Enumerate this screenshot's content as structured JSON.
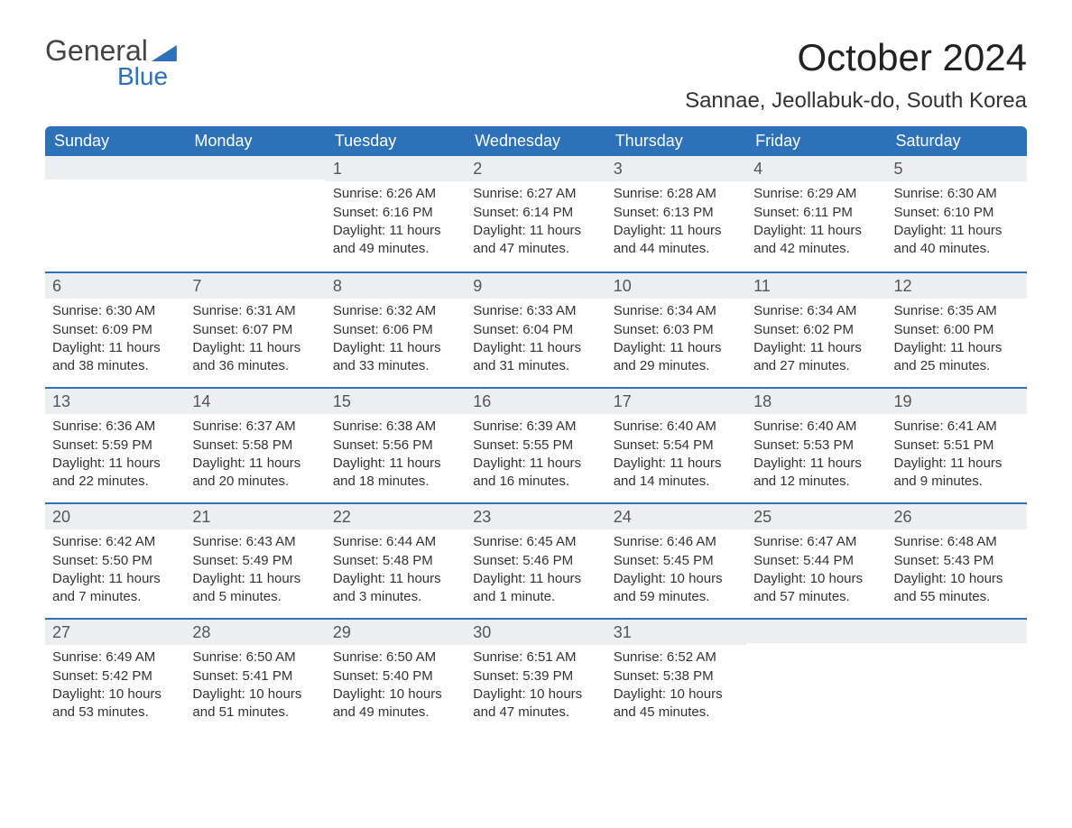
{
  "logo": {
    "top": "General",
    "bottom": "Blue"
  },
  "title": "October 2024",
  "subtitle": "Sannae, Jeollabuk-do, South Korea",
  "colors": {
    "header_bg": "#2d72b8",
    "header_text": "#ffffff",
    "daynum_bg": "#eceef0",
    "border": "#2d72b8",
    "text": "#333333",
    "page_bg": "#ffffff"
  },
  "weekdays": [
    "Sunday",
    "Monday",
    "Tuesday",
    "Wednesday",
    "Thursday",
    "Friday",
    "Saturday"
  ],
  "weeks": [
    [
      {
        "n": "",
        "lines": []
      },
      {
        "n": "",
        "lines": []
      },
      {
        "n": "1",
        "lines": [
          "Sunrise: 6:26 AM",
          "Sunset: 6:16 PM",
          "Daylight: 11 hours and 49 minutes."
        ]
      },
      {
        "n": "2",
        "lines": [
          "Sunrise: 6:27 AM",
          "Sunset: 6:14 PM",
          "Daylight: 11 hours and 47 minutes."
        ]
      },
      {
        "n": "3",
        "lines": [
          "Sunrise: 6:28 AM",
          "Sunset: 6:13 PM",
          "Daylight: 11 hours and 44 minutes."
        ]
      },
      {
        "n": "4",
        "lines": [
          "Sunrise: 6:29 AM",
          "Sunset: 6:11 PM",
          "Daylight: 11 hours and 42 minutes."
        ]
      },
      {
        "n": "5",
        "lines": [
          "Sunrise: 6:30 AM",
          "Sunset: 6:10 PM",
          "Daylight: 11 hours and 40 minutes."
        ]
      }
    ],
    [
      {
        "n": "6",
        "lines": [
          "Sunrise: 6:30 AM",
          "Sunset: 6:09 PM",
          "Daylight: 11 hours and 38 minutes."
        ]
      },
      {
        "n": "7",
        "lines": [
          "Sunrise: 6:31 AM",
          "Sunset: 6:07 PM",
          "Daylight: 11 hours and 36 minutes."
        ]
      },
      {
        "n": "8",
        "lines": [
          "Sunrise: 6:32 AM",
          "Sunset: 6:06 PM",
          "Daylight: 11 hours and 33 minutes."
        ]
      },
      {
        "n": "9",
        "lines": [
          "Sunrise: 6:33 AM",
          "Sunset: 6:04 PM",
          "Daylight: 11 hours and 31 minutes."
        ]
      },
      {
        "n": "10",
        "lines": [
          "Sunrise: 6:34 AM",
          "Sunset: 6:03 PM",
          "Daylight: 11 hours and 29 minutes."
        ]
      },
      {
        "n": "11",
        "lines": [
          "Sunrise: 6:34 AM",
          "Sunset: 6:02 PM",
          "Daylight: 11 hours and 27 minutes."
        ]
      },
      {
        "n": "12",
        "lines": [
          "Sunrise: 6:35 AM",
          "Sunset: 6:00 PM",
          "Daylight: 11 hours and 25 minutes."
        ]
      }
    ],
    [
      {
        "n": "13",
        "lines": [
          "Sunrise: 6:36 AM",
          "Sunset: 5:59 PM",
          "Daylight: 11 hours and 22 minutes."
        ]
      },
      {
        "n": "14",
        "lines": [
          "Sunrise: 6:37 AM",
          "Sunset: 5:58 PM",
          "Daylight: 11 hours and 20 minutes."
        ]
      },
      {
        "n": "15",
        "lines": [
          "Sunrise: 6:38 AM",
          "Sunset: 5:56 PM",
          "Daylight: 11 hours and 18 minutes."
        ]
      },
      {
        "n": "16",
        "lines": [
          "Sunrise: 6:39 AM",
          "Sunset: 5:55 PM",
          "Daylight: 11 hours and 16 minutes."
        ]
      },
      {
        "n": "17",
        "lines": [
          "Sunrise: 6:40 AM",
          "Sunset: 5:54 PM",
          "Daylight: 11 hours and 14 minutes."
        ]
      },
      {
        "n": "18",
        "lines": [
          "Sunrise: 6:40 AM",
          "Sunset: 5:53 PM",
          "Daylight: 11 hours and 12 minutes."
        ]
      },
      {
        "n": "19",
        "lines": [
          "Sunrise: 6:41 AM",
          "Sunset: 5:51 PM",
          "Daylight: 11 hours and 9 minutes."
        ]
      }
    ],
    [
      {
        "n": "20",
        "lines": [
          "Sunrise: 6:42 AM",
          "Sunset: 5:50 PM",
          "Daylight: 11 hours and 7 minutes."
        ]
      },
      {
        "n": "21",
        "lines": [
          "Sunrise: 6:43 AM",
          "Sunset: 5:49 PM",
          "Daylight: 11 hours and 5 minutes."
        ]
      },
      {
        "n": "22",
        "lines": [
          "Sunrise: 6:44 AM",
          "Sunset: 5:48 PM",
          "Daylight: 11 hours and 3 minutes."
        ]
      },
      {
        "n": "23",
        "lines": [
          "Sunrise: 6:45 AM",
          "Sunset: 5:46 PM",
          "Daylight: 11 hours and 1 minute."
        ]
      },
      {
        "n": "24",
        "lines": [
          "Sunrise: 6:46 AM",
          "Sunset: 5:45 PM",
          "Daylight: 10 hours and 59 minutes."
        ]
      },
      {
        "n": "25",
        "lines": [
          "Sunrise: 6:47 AM",
          "Sunset: 5:44 PM",
          "Daylight: 10 hours and 57 minutes."
        ]
      },
      {
        "n": "26",
        "lines": [
          "Sunrise: 6:48 AM",
          "Sunset: 5:43 PM",
          "Daylight: 10 hours and 55 minutes."
        ]
      }
    ],
    [
      {
        "n": "27",
        "lines": [
          "Sunrise: 6:49 AM",
          "Sunset: 5:42 PM",
          "Daylight: 10 hours and 53 minutes."
        ]
      },
      {
        "n": "28",
        "lines": [
          "Sunrise: 6:50 AM",
          "Sunset: 5:41 PM",
          "Daylight: 10 hours and 51 minutes."
        ]
      },
      {
        "n": "29",
        "lines": [
          "Sunrise: 6:50 AM",
          "Sunset: 5:40 PM",
          "Daylight: 10 hours and 49 minutes."
        ]
      },
      {
        "n": "30",
        "lines": [
          "Sunrise: 6:51 AM",
          "Sunset: 5:39 PM",
          "Daylight: 10 hours and 47 minutes."
        ]
      },
      {
        "n": "31",
        "lines": [
          "Sunrise: 6:52 AM",
          "Sunset: 5:38 PM",
          "Daylight: 10 hours and 45 minutes."
        ]
      },
      {
        "n": "",
        "lines": []
      },
      {
        "n": "",
        "lines": []
      }
    ]
  ]
}
